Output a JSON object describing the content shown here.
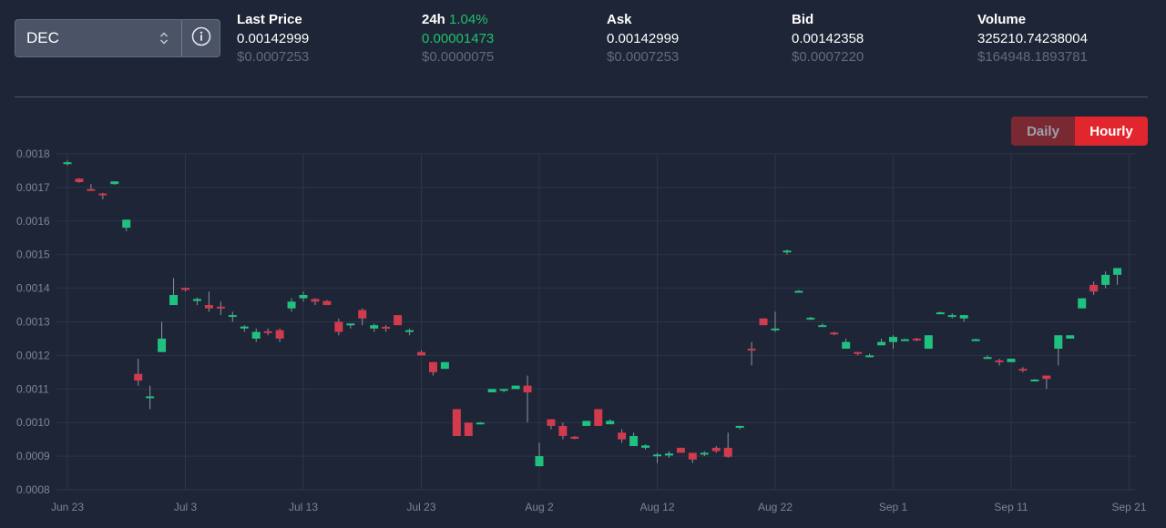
{
  "market": {
    "token": "DEC",
    "info_icon": "info-circle-icon",
    "chevron_icon": "sort-chevrons-icon"
  },
  "stats": {
    "last_price": {
      "label": "Last Price",
      "value": "0.00142999",
      "usd": "$0.0007253"
    },
    "change_24h": {
      "label": "24h",
      "change_pct": "1.04%",
      "value": "0.00001473",
      "usd": "$0.0000075"
    },
    "ask": {
      "label": "Ask",
      "value": "0.00142999",
      "usd": "$0.0007253"
    },
    "bid": {
      "label": "Bid",
      "value": "0.00142358",
      "usd": "$0.0007220"
    },
    "volume": {
      "label": "Volume",
      "value": "325210.74238004",
      "usd": "$164948.1893781"
    }
  },
  "interval_toggle": {
    "daily_label": "Daily",
    "hourly_label": "Hourly",
    "selected": "Hourly"
  },
  "colors": {
    "up": "#1ec27e",
    "down": "#d23a4d",
    "grid": "#2d3548",
    "background": "#1e2536"
  },
  "chart_data": {
    "type": "candlestick",
    "ylim": [
      0.0008,
      0.0018
    ],
    "y_ticks": [
      "0.0008",
      "0.0009",
      "0.0010",
      "0.0011",
      "0.0012",
      "0.0013",
      "0.0014",
      "0.0015",
      "0.0016",
      "0.0017",
      "0.0018"
    ],
    "x_ticks": [
      {
        "label": "Jun 23",
        "day": 0
      },
      {
        "label": "Jul 3",
        "day": 10
      },
      {
        "label": "Jul 13",
        "day": 20
      },
      {
        "label": "Jul 23",
        "day": 30
      },
      {
        "label": "Aug 2",
        "day": 40
      },
      {
        "label": "Aug 12",
        "day": 50
      },
      {
        "label": "Aug 22",
        "day": 60
      },
      {
        "label": "Sep 1",
        "day": 70
      },
      {
        "label": "Sep 11",
        "day": 80
      },
      {
        "label": "Sep 21",
        "day": 90
      }
    ],
    "grid": true,
    "candles": [
      {
        "date": "Jun 23",
        "open": 0.00177,
        "high": 0.00178,
        "low": 0.001765,
        "close": 0.001775
      },
      {
        "date": "Jun 24",
        "open": 0.001726,
        "high": 0.001728,
        "low": 0.001714,
        "close": 0.001716
      },
      {
        "date": "Jun 25",
        "open": 0.001695,
        "high": 0.00171,
        "low": 0.00169,
        "close": 0.001693
      },
      {
        "date": "Jun 26",
        "open": 0.001682,
        "high": 0.001684,
        "low": 0.001665,
        "close": 0.001678
      },
      {
        "date": "Jun 27",
        "open": 0.00171,
        "high": 0.001718,
        "low": 0.001708,
        "close": 0.001718
      },
      {
        "date": "Jun 28",
        "open": 0.00158,
        "high": 0.001605,
        "low": 0.00157,
        "close": 0.001604
      },
      {
        "date": "Jun 29",
        "open": 0.001145,
        "high": 0.00119,
        "low": 0.00111,
        "close": 0.001125
      },
      {
        "date": "Jun 30",
        "open": 0.001074,
        "high": 0.00111,
        "low": 0.00104,
        "close": 0.001078
      },
      {
        "date": "Jul 1",
        "open": 0.00121,
        "high": 0.0013,
        "low": 0.00121,
        "close": 0.00125
      },
      {
        "date": "Jul 2",
        "open": 0.00135,
        "high": 0.00143,
        "low": 0.00135,
        "close": 0.00138
      },
      {
        "date": "Jul 3",
        "open": 0.001401,
        "high": 0.001402,
        "low": 0.00139,
        "close": 0.001395
      },
      {
        "date": "Jul 4",
        "open": 0.001362,
        "high": 0.001372,
        "low": 0.00135,
        "close": 0.001368
      },
      {
        "date": "Jul 5",
        "open": 0.00135,
        "high": 0.00139,
        "low": 0.00133,
        "close": 0.00134
      },
      {
        "date": "Jul 6",
        "open": 0.001345,
        "high": 0.00136,
        "low": 0.00132,
        "close": 0.001342
      },
      {
        "date": "Jul 7",
        "open": 0.001315,
        "high": 0.00133,
        "low": 0.0013,
        "close": 0.00132
      },
      {
        "date": "Jul 8",
        "open": 0.00128,
        "high": 0.00129,
        "low": 0.00127,
        "close": 0.001286
      },
      {
        "date": "Jul 9",
        "open": 0.00125,
        "high": 0.00128,
        "low": 0.00124,
        "close": 0.00127
      },
      {
        "date": "Jul 10",
        "open": 0.001272,
        "high": 0.00128,
        "low": 0.00126,
        "close": 0.00127
      },
      {
        "date": "Jul 11",
        "open": 0.001275,
        "high": 0.00128,
        "low": 0.00124,
        "close": 0.00125
      },
      {
        "date": "Jul 12",
        "open": 0.00134,
        "high": 0.00137,
        "low": 0.00133,
        "close": 0.00136
      },
      {
        "date": "Jul 13",
        "open": 0.00137,
        "high": 0.00139,
        "low": 0.00136,
        "close": 0.00138
      },
      {
        "date": "Jul 14",
        "open": 0.001368,
        "high": 0.00137,
        "low": 0.00135,
        "close": 0.00136
      },
      {
        "date": "Jul 15",
        "open": 0.001362,
        "high": 0.001365,
        "low": 0.00135,
        "close": 0.00135
      },
      {
        "date": "Jul 16",
        "open": 0.0013,
        "high": 0.00131,
        "low": 0.00126,
        "close": 0.00127
      },
      {
        "date": "Jul 17",
        "open": 0.00129,
        "high": 0.001295,
        "low": 0.00128,
        "close": 0.001295
      },
      {
        "date": "Jul 18",
        "open": 0.001335,
        "high": 0.00134,
        "low": 0.00129,
        "close": 0.00131
      },
      {
        "date": "Jul 19",
        "open": 0.00128,
        "high": 0.001295,
        "low": 0.00127,
        "close": 0.00129
      },
      {
        "date": "Jul 20",
        "open": 0.001285,
        "high": 0.00129,
        "low": 0.00127,
        "close": 0.00128
      },
      {
        "date": "Jul 21",
        "open": 0.00132,
        "high": 0.00132,
        "low": 0.00129,
        "close": 0.00129
      },
      {
        "date": "Jul 22",
        "open": 0.00127,
        "high": 0.00128,
        "low": 0.00126,
        "close": 0.001275
      },
      {
        "date": "Jul 23",
        "open": 0.00121,
        "high": 0.001215,
        "low": 0.0012,
        "close": 0.0012
      },
      {
        "date": "Jul 24",
        "open": 0.00118,
        "high": 0.00118,
        "low": 0.00114,
        "close": 0.00115
      },
      {
        "date": "Jul 25",
        "open": 0.00116,
        "high": 0.00118,
        "low": 0.00116,
        "close": 0.00118
      },
      {
        "date": "Jul 26",
        "open": 0.00104,
        "high": 0.00104,
        "low": 0.00096,
        "close": 0.00096
      },
      {
        "date": "Jul 27",
        "open": 0.001,
        "high": 0.001,
        "low": 0.00096,
        "close": 0.00096
      },
      {
        "date": "Jul 28",
        "open": 0.001,
        "high": 0.001002,
        "low": 0.000998,
        "close": 0.001
      },
      {
        "date": "Jul 29",
        "open": 0.00109,
        "high": 0.0011,
        "low": 0.00109,
        "close": 0.0011
      },
      {
        "date": "Jul 30",
        "open": 0.001095,
        "high": 0.0011,
        "low": 0.00109,
        "close": 0.0011
      },
      {
        "date": "Jul 31",
        "open": 0.0011,
        "high": 0.00111,
        "low": 0.0011,
        "close": 0.00111
      },
      {
        "date": "Aug 1",
        "open": 0.00111,
        "high": 0.00114,
        "low": 0.001,
        "close": 0.00109
      },
      {
        "date": "Aug 2",
        "open": 0.00087,
        "high": 0.00094,
        "low": 0.00087,
        "close": 0.0009
      },
      {
        "date": "Aug 3",
        "open": 0.00101,
        "high": 0.00101,
        "low": 0.00098,
        "close": 0.00099
      },
      {
        "date": "Aug 4",
        "open": 0.00099,
        "high": 0.001,
        "low": 0.00095,
        "close": 0.00096
      },
      {
        "date": "Aug 5",
        "open": 0.000958,
        "high": 0.00096,
        "low": 0.00095,
        "close": 0.000952
      },
      {
        "date": "Aug 6",
        "open": 0.00099,
        "high": 0.001005,
        "low": 0.00099,
        "close": 0.001005
      },
      {
        "date": "Aug 7",
        "open": 0.00104,
        "high": 0.00104,
        "low": 0.00099,
        "close": 0.00099
      },
      {
        "date": "Aug 8",
        "open": 0.000995,
        "high": 0.00101,
        "low": 0.000995,
        "close": 0.001005
      },
      {
        "date": "Aug 9",
        "open": 0.00097,
        "high": 0.00098,
        "low": 0.00094,
        "close": 0.00095
      },
      {
        "date": "Aug 10",
        "open": 0.00093,
        "high": 0.00097,
        "low": 0.00093,
        "close": 0.00096
      },
      {
        "date": "Aug 11",
        "open": 0.000925,
        "high": 0.000935,
        "low": 0.00092,
        "close": 0.000932
      },
      {
        "date": "Aug 12",
        "open": 0.0009,
        "high": 0.00091,
        "low": 0.00088,
        "close": 0.000905
      },
      {
        "date": "Aug 13",
        "open": 0.000902,
        "high": 0.000915,
        "low": 0.000895,
        "close": 0.000908
      },
      {
        "date": "Aug 14",
        "open": 0.000925,
        "high": 0.000925,
        "low": 0.00091,
        "close": 0.00091
      },
      {
        "date": "Aug 15",
        "open": 0.00091,
        "high": 0.00091,
        "low": 0.00088,
        "close": 0.00089
      },
      {
        "date": "Aug 16",
        "open": 0.000905,
        "high": 0.000915,
        "low": 0.0009,
        "close": 0.00091
      },
      {
        "date": "Aug 17",
        "open": 0.000925,
        "high": 0.00093,
        "low": 0.00091,
        "close": 0.000915
      },
      {
        "date": "Aug 18",
        "open": 0.000925,
        "high": 0.00097,
        "low": 0.000895,
        "close": 0.000898
      },
      {
        "date": "Aug 19",
        "open": 0.000985,
        "high": 0.00099,
        "low": 0.00098,
        "close": 0.00099
      },
      {
        "date": "Aug 20",
        "open": 0.00122,
        "high": 0.00124,
        "low": 0.00117,
        "close": 0.001215
      },
      {
        "date": "Aug 21",
        "open": 0.00131,
        "high": 0.00131,
        "low": 0.00129,
        "close": 0.00129
      },
      {
        "date": "Aug 22",
        "open": 0.001275,
        "high": 0.00133,
        "low": 0.00127,
        "close": 0.00128
      },
      {
        "date": "Aug 23",
        "open": 0.00151,
        "high": 0.001515,
        "low": 0.0015,
        "close": 0.001512
      },
      {
        "date": "Aug 24",
        "open": 0.00139,
        "high": 0.001395,
        "low": 0.001388,
        "close": 0.001392
      },
      {
        "date": "Aug 25",
        "open": 0.001308,
        "high": 0.001315,
        "low": 0.001305,
        "close": 0.001312
      },
      {
        "date": "Aug 26",
        "open": 0.00129,
        "high": 0.001295,
        "low": 0.001285,
        "close": 0.00129
      },
      {
        "date": "Aug 27",
        "open": 0.001268,
        "high": 0.00127,
        "low": 0.00126,
        "close": 0.001265
      },
      {
        "date": "Aug 28",
        "open": 0.00122,
        "high": 0.00125,
        "low": 0.00122,
        "close": 0.00124
      },
      {
        "date": "Aug 29",
        "open": 0.00121,
        "high": 0.00121,
        "low": 0.0012,
        "close": 0.001205
      },
      {
        "date": "Aug 30",
        "open": 0.0012,
        "high": 0.001205,
        "low": 0.001195,
        "close": 0.0012
      },
      {
        "date": "Aug 31",
        "open": 0.00123,
        "high": 0.00125,
        "low": 0.00123,
        "close": 0.00124
      },
      {
        "date": "Sep 1",
        "open": 0.00124,
        "high": 0.00126,
        "low": 0.00122,
        "close": 0.001255
      },
      {
        "date": "Sep 2",
        "open": 0.001248,
        "high": 0.00125,
        "low": 0.001245,
        "close": 0.001248
      },
      {
        "date": "Sep 3",
        "open": 0.00125,
        "high": 0.001252,
        "low": 0.001242,
        "close": 0.001245
      },
      {
        "date": "Sep 4",
        "open": 0.00122,
        "high": 0.00126,
        "low": 0.00122,
        "close": 0.00126
      },
      {
        "date": "Sep 5",
        "open": 0.001328,
        "high": 0.00133,
        "low": 0.001325,
        "close": 0.001328
      },
      {
        "date": "Sep 6",
        "open": 0.001318,
        "high": 0.001325,
        "low": 0.00131,
        "close": 0.00132
      },
      {
        "date": "Sep 7",
        "open": 0.00131,
        "high": 0.00132,
        "low": 0.0013,
        "close": 0.00132
      },
      {
        "date": "Sep 8",
        "open": 0.001248,
        "high": 0.00125,
        "low": 0.001245,
        "close": 0.001248
      },
      {
        "date": "Sep 9",
        "open": 0.00119,
        "high": 0.0012,
        "low": 0.00119,
        "close": 0.001195
      },
      {
        "date": "Sep 10",
        "open": 0.001185,
        "high": 0.00119,
        "low": 0.00117,
        "close": 0.00118
      },
      {
        "date": "Sep 11",
        "open": 0.00118,
        "high": 0.00119,
        "low": 0.00118,
        "close": 0.00119
      },
      {
        "date": "Sep 12",
        "open": 0.00116,
        "high": 0.001165,
        "low": 0.00115,
        "close": 0.001158
      },
      {
        "date": "Sep 13",
        "open": 0.001128,
        "high": 0.00113,
        "low": 0.001125,
        "close": 0.001128
      },
      {
        "date": "Sep 14",
        "open": 0.00114,
        "high": 0.00114,
        "low": 0.0011,
        "close": 0.00113
      },
      {
        "date": "Sep 15",
        "open": 0.00122,
        "high": 0.00126,
        "low": 0.00117,
        "close": 0.00126
      },
      {
        "date": "Sep 16",
        "open": 0.00125,
        "high": 0.00126,
        "low": 0.00125,
        "close": 0.00126
      },
      {
        "date": "Sep 17",
        "open": 0.00134,
        "high": 0.00137,
        "low": 0.00134,
        "close": 0.00137
      },
      {
        "date": "Sep 18",
        "open": 0.00141,
        "high": 0.00142,
        "low": 0.00138,
        "close": 0.00139
      },
      {
        "date": "Sep 19",
        "open": 0.00141,
        "high": 0.00145,
        "low": 0.0014,
        "close": 0.00144
      },
      {
        "date": "Sep 20",
        "open": 0.00144,
        "high": 0.00146,
        "low": 0.00141,
        "close": 0.00146
      }
    ]
  }
}
